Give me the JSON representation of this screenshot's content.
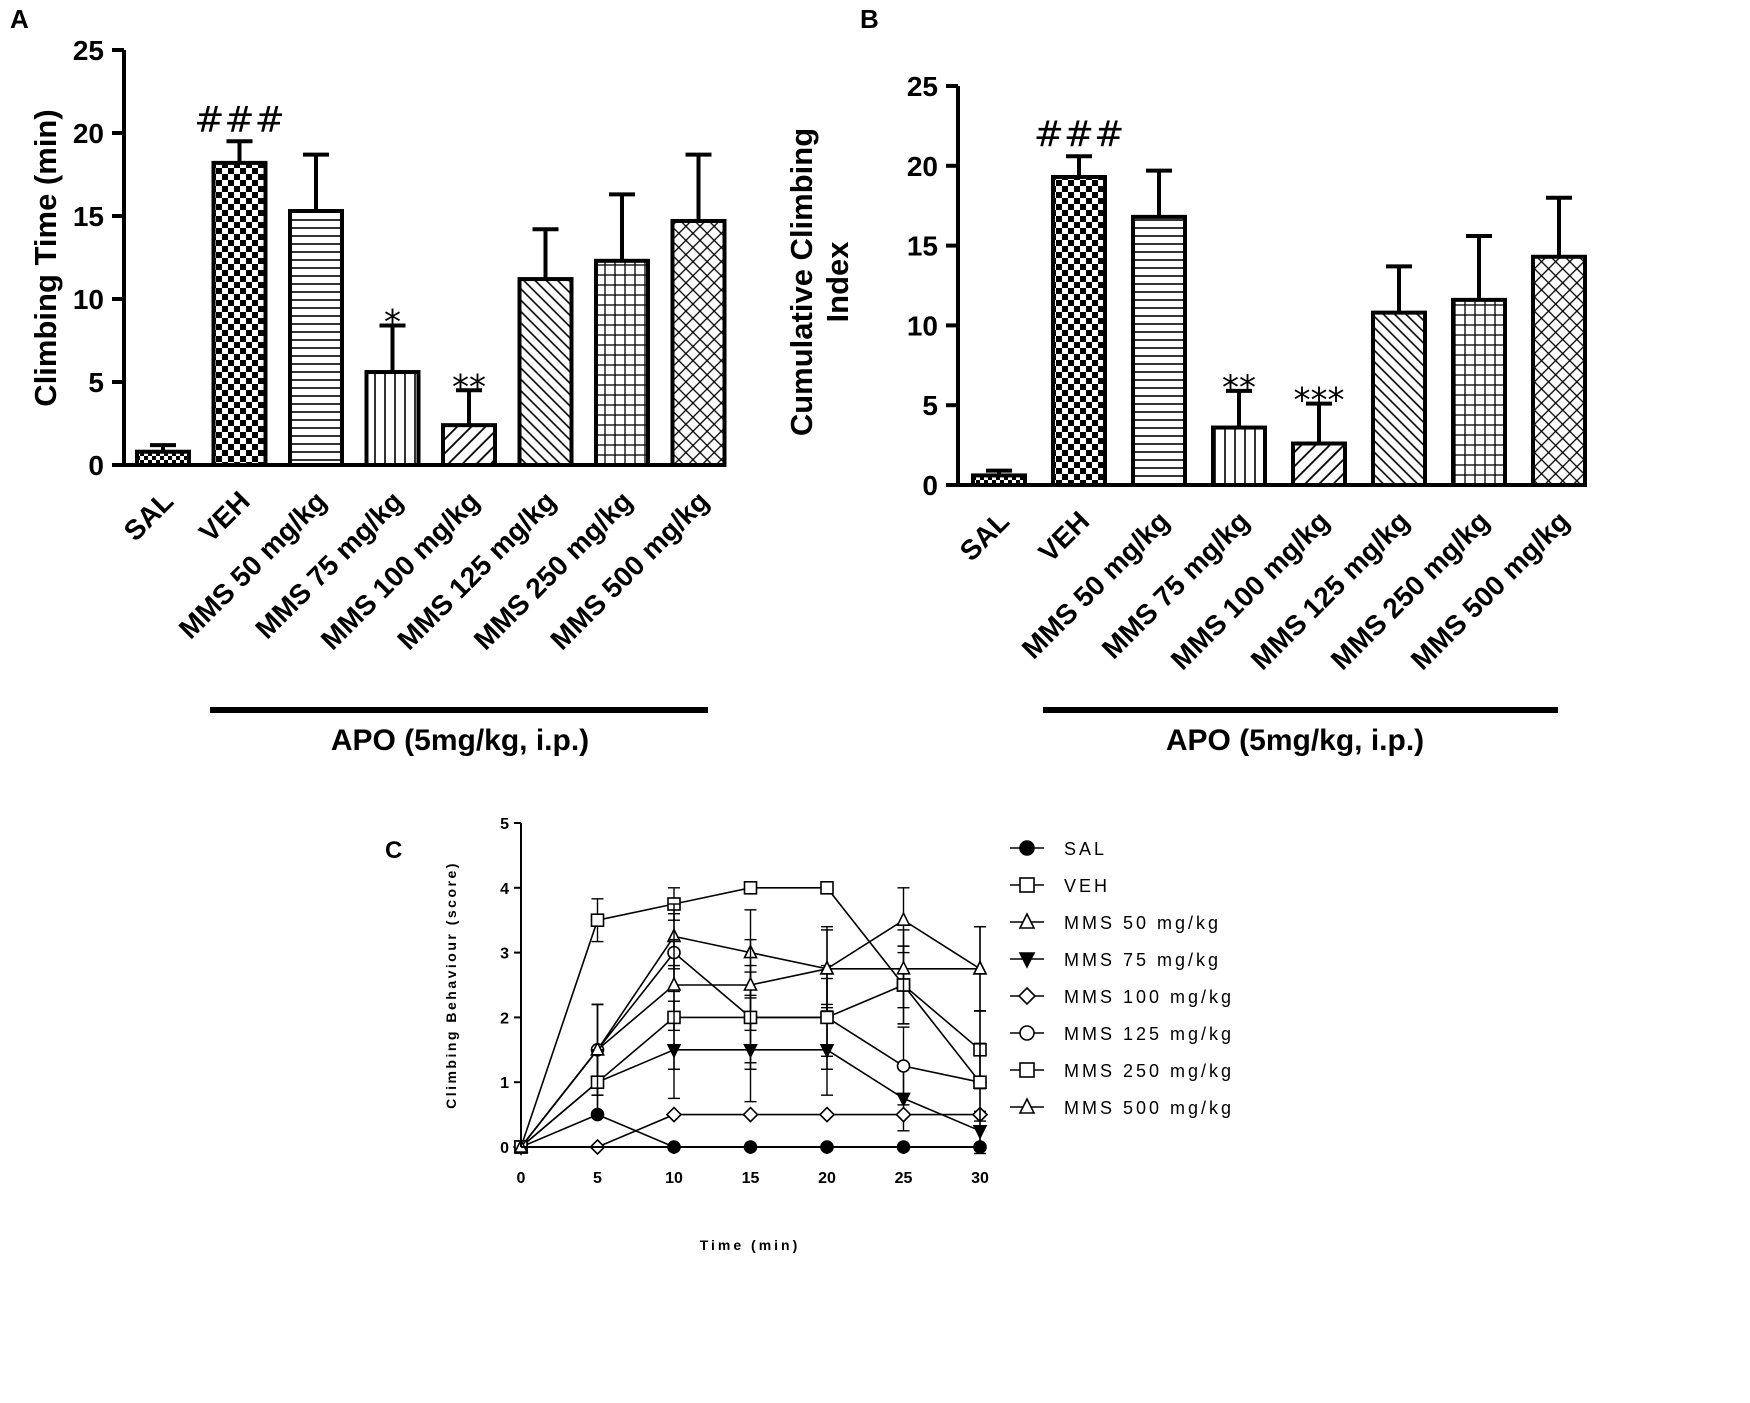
{
  "chart_data": [
    {
      "panel_label": "A",
      "type": "bar",
      "title": "",
      "ylabel": "Climbing Time (min)",
      "ylim": [
        0,
        25
      ],
      "yticks": [
        "0",
        "5",
        "10",
        "15",
        "20",
        "25"
      ],
      "categories": [
        "SAL",
        "VEH",
        "MMS 50 mg/kg",
        "MMS 75 mg/kg",
        "MMS 100 mg/kg",
        "MMS 125 mg/kg",
        "MMS 250 mg/kg",
        "MMS 500 mg/kg"
      ],
      "values": [
        0.8,
        18.2,
        15.3,
        5.6,
        2.4,
        11.2,
        12.3,
        14.7
      ],
      "errors": [
        0.4,
        1.3,
        3.4,
        2.8,
        2.1,
        3.0,
        4.0,
        4.0
      ],
      "patterns": [
        "checker-small",
        "checker",
        "horizontal",
        "vertical",
        "diagonal",
        "diagonal-dense",
        "grid",
        "crosshatch"
      ],
      "annotations": [
        "",
        "###",
        "",
        "*",
        "**",
        "",
        "",
        ""
      ],
      "group_label": "APO (5mg/kg, i.p.)"
    },
    {
      "panel_label": "B",
      "type": "bar",
      "title": "",
      "ylabel_lines": [
        "Cumulative Climbing",
        "Index"
      ],
      "ylim": [
        0,
        25
      ],
      "yticks": [
        "0",
        "5",
        "10",
        "15",
        "20",
        "25"
      ],
      "categories": [
        "SAL",
        "VEH",
        "MMS 50 mg/kg",
        "MMS 75 mg/kg",
        "MMS 100 mg/kg",
        "MMS 125 mg/kg",
        "MMS 250 mg/kg",
        "MMS 500 mg/kg"
      ],
      "values": [
        0.6,
        19.3,
        16.8,
        3.6,
        2.6,
        10.8,
        11.6,
        14.3
      ],
      "errors": [
        0.3,
        1.3,
        2.9,
        2.3,
        2.5,
        2.9,
        4.0,
        3.7
      ],
      "patterns": [
        "checker-small",
        "checker",
        "horizontal",
        "vertical",
        "diagonal",
        "diagonal-dense",
        "grid",
        "crosshatch"
      ],
      "annotations": [
        "",
        "###",
        "",
        "**",
        "***",
        "",
        "",
        ""
      ],
      "group_label": "APO (5mg/kg, i.p.)"
    },
    {
      "panel_label": "C",
      "type": "line",
      "title": "",
      "xlabel": "Time (min)",
      "ylabel": "Climbing Behaviour (score)",
      "xlim": [
        0,
        30
      ],
      "ylim": [
        0,
        5
      ],
      "xticks": [
        "0",
        "5",
        "10",
        "15",
        "20",
        "25",
        "30"
      ],
      "yticks": [
        "0",
        "1",
        "2",
        "3",
        "4",
        "5"
      ],
      "x": [
        0,
        5,
        10,
        15,
        20,
        25,
        30
      ],
      "series": [
        {
          "name": "SAL",
          "marker": "circle-filled",
          "values": [
            0,
            0.5,
            0,
            0,
            0,
            0,
            0
          ],
          "errors": [
            0,
            0,
            0,
            0,
            0,
            0,
            0
          ]
        },
        {
          "name": "VEH",
          "marker": "square-open",
          "values": [
            0,
            3.5,
            3.75,
            4,
            4,
            2.5,
            1.5
          ],
          "errors": [
            0,
            0.33,
            0.25,
            0,
            0,
            0.6,
            0.6
          ]
        },
        {
          "name": "MMS 50 mg/kg",
          "marker": "triangle-open",
          "values": [
            0,
            1.5,
            3.25,
            3,
            2.75,
            3.5,
            2.75
          ],
          "errors": [
            0,
            0.7,
            0.5,
            0.66,
            0.65,
            0.5,
            0.65
          ]
        },
        {
          "name": "MMS 75 mg/kg",
          "marker": "triangle-down-filled",
          "values": [
            0,
            1,
            1.5,
            1.5,
            1.5,
            0.75,
            0.25
          ],
          "errors": [
            0,
            0.5,
            0.75,
            0.8,
            0.7,
            0.5,
            0.3
          ]
        },
        {
          "name": "MMS 100 mg/kg",
          "marker": "diamond-open",
          "values": [
            0,
            0,
            0.5,
            0.5,
            0.5,
            0.5,
            0.5
          ],
          "errors": [
            0,
            0,
            0,
            0,
            0,
            0,
            0
          ]
        },
        {
          "name": "MMS 125 mg/kg",
          "marker": "circle-open",
          "values": [
            0,
            1.5,
            3,
            2,
            2,
            1.25,
            1
          ],
          "errors": [
            0,
            0.7,
            0.6,
            0.7,
            0.6,
            0.6,
            0.6
          ]
        },
        {
          "name": "MMS 250 mg/kg",
          "marker": "square-open",
          "values": [
            0,
            1,
            2,
            2,
            2,
            2.5,
            1
          ],
          "errors": [
            0,
            0.5,
            0.8,
            0.8,
            0.8,
            0.6,
            1.1
          ]
        },
        {
          "name": "MMS 500 mg/kg",
          "marker": "triangle-open",
          "values": [
            0,
            1.5,
            2.5,
            2.5,
            2.75,
            2.75,
            2.75
          ],
          "errors": [
            0,
            0.7,
            0.7,
            0.7,
            0.6,
            0.6,
            0.65
          ]
        }
      ]
    }
  ]
}
